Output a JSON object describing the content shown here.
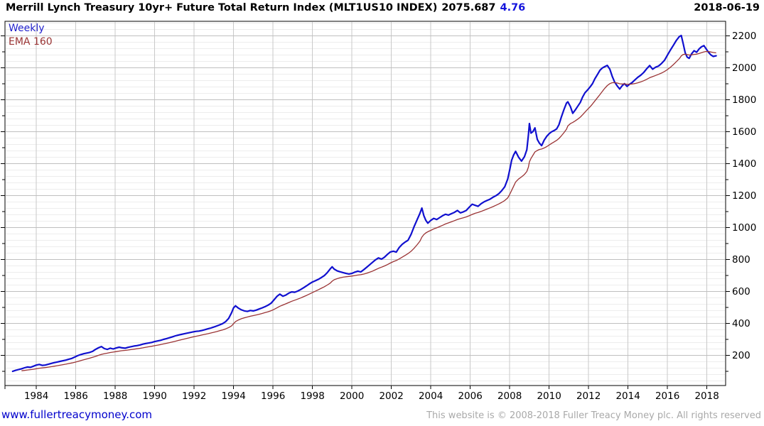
{
  "header": {
    "title": "Merrill Lynch Treasury 10yr+ Future Total Return Index (MLT1US10 INDEX)",
    "last_value": "2075.687",
    "change": "4.76",
    "date": "2018-06-19"
  },
  "legend": {
    "frequency": "Weekly",
    "overlay": "EMA 160"
  },
  "footer": {
    "site": "www.fullertreacymoney.com",
    "copyright": "This website is © 2008-2018 Fuller Treacy Money plc. All rights reserved"
  },
  "colors": {
    "price_line": "#1010cf",
    "ema_line": "#9a3334",
    "grid_minor": "#ededed",
    "grid_major": "#bfbfbf",
    "grid_vertical": "#c9c9c9",
    "axis": "#000000",
    "tick_label": "#000000",
    "change_text": "#1414dd",
    "site_link": "#0000cc",
    "copyright_text": "#a9a9a9"
  },
  "chart_data": {
    "type": "line",
    "title": "Merrill Lynch Treasury 10yr+ Future Total Return Index (MLT1US10 INDEX)",
    "frequency": "Weekly",
    "last_value": 2075.687,
    "axis": {
      "xlim": [
        1982.41,
        2018.95
      ],
      "ylim": [
        12,
        2292
      ],
      "x_ticks": [
        1984,
        1986,
        1988,
        1990,
        1992,
        1994,
        1996,
        1998,
        2000,
        2002,
        2004,
        2006,
        2008,
        2010,
        2012,
        2014,
        2016,
        2018
      ],
      "y_ticks": [
        200,
        400,
        600,
        800,
        1000,
        1200,
        1400,
        1600,
        1800,
        2000,
        2200
      ],
      "y_tick_minor_step": 100,
      "y_grid_minor_step": 40,
      "grid": true,
      "y_axis_side": "right"
    },
    "series": [
      {
        "name": "MLT1US10 INDEX total return (weekly)",
        "color": "#1010cf",
        "points": [
          [
            1982.8,
            101
          ],
          [
            1982.95,
            107
          ],
          [
            1983.1,
            112
          ],
          [
            1983.25,
            117
          ],
          [
            1983.4,
            123
          ],
          [
            1983.55,
            128
          ],
          [
            1983.7,
            126
          ],
          [
            1983.85,
            133
          ],
          [
            1984.0,
            140
          ],
          [
            1984.15,
            144
          ],
          [
            1984.3,
            138
          ],
          [
            1984.45,
            140
          ],
          [
            1984.6,
            145
          ],
          [
            1984.75,
            150
          ],
          [
            1984.9,
            155
          ],
          [
            1985.05,
            159
          ],
          [
            1985.2,
            163
          ],
          [
            1985.35,
            167
          ],
          [
            1985.5,
            171
          ],
          [
            1985.65,
            177
          ],
          [
            1985.8,
            182
          ],
          [
            1985.95,
            190
          ],
          [
            1986.1,
            199
          ],
          [
            1986.25,
            206
          ],
          [
            1986.4,
            211
          ],
          [
            1986.55,
            215
          ],
          [
            1986.7,
            219
          ],
          [
            1986.85,
            226
          ],
          [
            1987.0,
            238
          ],
          [
            1987.15,
            248
          ],
          [
            1987.3,
            256
          ],
          [
            1987.45,
            243
          ],
          [
            1987.6,
            238
          ],
          [
            1987.75,
            246
          ],
          [
            1987.9,
            241
          ],
          [
            1988.05,
            247
          ],
          [
            1988.2,
            252
          ],
          [
            1988.35,
            248
          ],
          [
            1988.5,
            246
          ],
          [
            1988.65,
            251
          ],
          [
            1988.8,
            255
          ],
          [
            1988.95,
            259
          ],
          [
            1989.1,
            262
          ],
          [
            1989.25,
            266
          ],
          [
            1989.4,
            271
          ],
          [
            1989.55,
            275
          ],
          [
            1989.7,
            278
          ],
          [
            1989.85,
            282
          ],
          [
            1990.0,
            287
          ],
          [
            1990.15,
            291
          ],
          [
            1990.3,
            295
          ],
          [
            1990.45,
            301
          ],
          [
            1990.6,
            306
          ],
          [
            1990.75,
            311
          ],
          [
            1990.9,
            317
          ],
          [
            1991.05,
            323
          ],
          [
            1991.2,
            328
          ],
          [
            1991.35,
            332
          ],
          [
            1991.5,
            336
          ],
          [
            1991.65,
            340
          ],
          [
            1991.8,
            344
          ],
          [
            1991.95,
            348
          ],
          [
            1992.1,
            351
          ],
          [
            1992.25,
            353
          ],
          [
            1992.4,
            357
          ],
          [
            1992.55,
            362
          ],
          [
            1992.7,
            367
          ],
          [
            1992.85,
            372
          ],
          [
            1993.0,
            378
          ],
          [
            1993.15,
            385
          ],
          [
            1993.3,
            392
          ],
          [
            1993.45,
            400
          ],
          [
            1993.6,
            412
          ],
          [
            1993.75,
            432
          ],
          [
            1993.9,
            468
          ],
          [
            1994.0,
            498
          ],
          [
            1994.1,
            511
          ],
          [
            1994.25,
            496
          ],
          [
            1994.4,
            486
          ],
          [
            1994.55,
            479
          ],
          [
            1994.7,
            476
          ],
          [
            1994.85,
            482
          ],
          [
            1995.0,
            479
          ],
          [
            1995.15,
            484
          ],
          [
            1995.3,
            491
          ],
          [
            1995.45,
            498
          ],
          [
            1995.6,
            506
          ],
          [
            1995.75,
            515
          ],
          [
            1995.9,
            527
          ],
          [
            1996.05,
            548
          ],
          [
            1996.2,
            570
          ],
          [
            1996.35,
            584
          ],
          [
            1996.5,
            571
          ],
          [
            1996.65,
            578
          ],
          [
            1996.8,
            590
          ],
          [
            1996.95,
            598
          ],
          [
            1997.1,
            596
          ],
          [
            1997.25,
            603
          ],
          [
            1997.4,
            613
          ],
          [
            1997.55,
            624
          ],
          [
            1997.7,
            636
          ],
          [
            1997.85,
            649
          ],
          [
            1998.0,
            660
          ],
          [
            1998.15,
            668
          ],
          [
            1998.3,
            677
          ],
          [
            1998.45,
            688
          ],
          [
            1998.6,
            700
          ],
          [
            1998.75,
            718
          ],
          [
            1998.9,
            742
          ],
          [
            1999.0,
            755
          ],
          [
            1999.1,
            741
          ],
          [
            1999.25,
            730
          ],
          [
            1999.4,
            724
          ],
          [
            1999.55,
            719
          ],
          [
            1999.7,
            714
          ],
          [
            1999.85,
            710
          ],
          [
            2000.0,
            714
          ],
          [
            2000.15,
            722
          ],
          [
            2000.3,
            728
          ],
          [
            2000.45,
            723
          ],
          [
            2000.6,
            737
          ],
          [
            2000.75,
            752
          ],
          [
            2000.9,
            768
          ],
          [
            2001.05,
            784
          ],
          [
            2001.2,
            799
          ],
          [
            2001.35,
            811
          ],
          [
            2001.5,
            803
          ],
          [
            2001.65,
            815
          ],
          [
            2001.8,
            833
          ],
          [
            2001.95,
            848
          ],
          [
            2002.1,
            853
          ],
          [
            2002.25,
            847
          ],
          [
            2002.4,
            876
          ],
          [
            2002.55,
            896
          ],
          [
            2002.7,
            910
          ],
          [
            2002.85,
            922
          ],
          [
            2003.0,
            958
          ],
          [
            2003.15,
            1005
          ],
          [
            2003.3,
            1048
          ],
          [
            2003.45,
            1090
          ],
          [
            2003.55,
            1123
          ],
          [
            2003.65,
            1075
          ],
          [
            2003.75,
            1046
          ],
          [
            2003.85,
            1028
          ],
          [
            2004.0,
            1046
          ],
          [
            2004.15,
            1058
          ],
          [
            2004.3,
            1051
          ],
          [
            2004.45,
            1063
          ],
          [
            2004.6,
            1075
          ],
          [
            2004.75,
            1084
          ],
          [
            2004.9,
            1079
          ],
          [
            2005.05,
            1088
          ],
          [
            2005.2,
            1096
          ],
          [
            2005.35,
            1108
          ],
          [
            2005.5,
            1093
          ],
          [
            2005.65,
            1099
          ],
          [
            2005.8,
            1108
          ],
          [
            2005.95,
            1128
          ],
          [
            2006.1,
            1147
          ],
          [
            2006.25,
            1140
          ],
          [
            2006.4,
            1134
          ],
          [
            2006.55,
            1150
          ],
          [
            2006.7,
            1162
          ],
          [
            2006.85,
            1170
          ],
          [
            2007.0,
            1178
          ],
          [
            2007.15,
            1190
          ],
          [
            2007.3,
            1200
          ],
          [
            2007.45,
            1213
          ],
          [
            2007.6,
            1232
          ],
          [
            2007.75,
            1256
          ],
          [
            2007.9,
            1305
          ],
          [
            2008.0,
            1360
          ],
          [
            2008.1,
            1422
          ],
          [
            2008.2,
            1455
          ],
          [
            2008.3,
            1478
          ],
          [
            2008.45,
            1442
          ],
          [
            2008.6,
            1417
          ],
          [
            2008.75,
            1444
          ],
          [
            2008.87,
            1488
          ],
          [
            2008.95,
            1580
          ],
          [
            2009.0,
            1652
          ],
          [
            2009.08,
            1592
          ],
          [
            2009.18,
            1602
          ],
          [
            2009.28,
            1625
          ],
          [
            2009.4,
            1553
          ],
          [
            2009.5,
            1530
          ],
          [
            2009.62,
            1514
          ],
          [
            2009.75,
            1548
          ],
          [
            2009.88,
            1572
          ],
          [
            2010.0,
            1588
          ],
          [
            2010.12,
            1600
          ],
          [
            2010.25,
            1608
          ],
          [
            2010.38,
            1618
          ],
          [
            2010.5,
            1645
          ],
          [
            2010.62,
            1692
          ],
          [
            2010.75,
            1738
          ],
          [
            2010.88,
            1780
          ],
          [
            2010.95,
            1788
          ],
          [
            2011.08,
            1758
          ],
          [
            2011.2,
            1716
          ],
          [
            2011.32,
            1736
          ],
          [
            2011.45,
            1760
          ],
          [
            2011.58,
            1784
          ],
          [
            2011.7,
            1818
          ],
          [
            2011.82,
            1845
          ],
          [
            2011.95,
            1862
          ],
          [
            2012.08,
            1882
          ],
          [
            2012.2,
            1902
          ],
          [
            2012.32,
            1932
          ],
          [
            2012.45,
            1958
          ],
          [
            2012.58,
            1986
          ],
          [
            2012.7,
            2000
          ],
          [
            2012.82,
            2008
          ],
          [
            2012.95,
            2016
          ],
          [
            2013.08,
            1992
          ],
          [
            2013.2,
            1948
          ],
          [
            2013.32,
            1912
          ],
          [
            2013.45,
            1888
          ],
          [
            2013.58,
            1868
          ],
          [
            2013.7,
            1888
          ],
          [
            2013.82,
            1902
          ],
          [
            2013.95,
            1885
          ],
          [
            2014.08,
            1898
          ],
          [
            2014.2,
            1908
          ],
          [
            2014.35,
            1925
          ],
          [
            2014.5,
            1942
          ],
          [
            2014.65,
            1955
          ],
          [
            2014.8,
            1972
          ],
          [
            2014.95,
            1995
          ],
          [
            2015.1,
            2015
          ],
          [
            2015.25,
            1992
          ],
          [
            2015.4,
            2005
          ],
          [
            2015.55,
            2012
          ],
          [
            2015.7,
            2028
          ],
          [
            2015.85,
            2048
          ],
          [
            2016.0,
            2080
          ],
          [
            2016.15,
            2112
          ],
          [
            2016.3,
            2142
          ],
          [
            2016.45,
            2172
          ],
          [
            2016.6,
            2196
          ],
          [
            2016.7,
            2203
          ],
          [
            2016.8,
            2152
          ],
          [
            2016.9,
            2095
          ],
          [
            2017.0,
            2068
          ],
          [
            2017.1,
            2060
          ],
          [
            2017.22,
            2088
          ],
          [
            2017.35,
            2108
          ],
          [
            2017.48,
            2098
          ],
          [
            2017.6,
            2118
          ],
          [
            2017.72,
            2132
          ],
          [
            2017.85,
            2140
          ],
          [
            2017.95,
            2122
          ],
          [
            2018.08,
            2098
          ],
          [
            2018.2,
            2082
          ],
          [
            2018.32,
            2072
          ],
          [
            2018.47,
            2076
          ]
        ]
      },
      {
        "name": "EMA 160",
        "color": "#9a3334",
        "derived_from": "MLT1US10 INDEX total return (weekly)",
        "smoothing_alpha": 0.12
      }
    ]
  }
}
